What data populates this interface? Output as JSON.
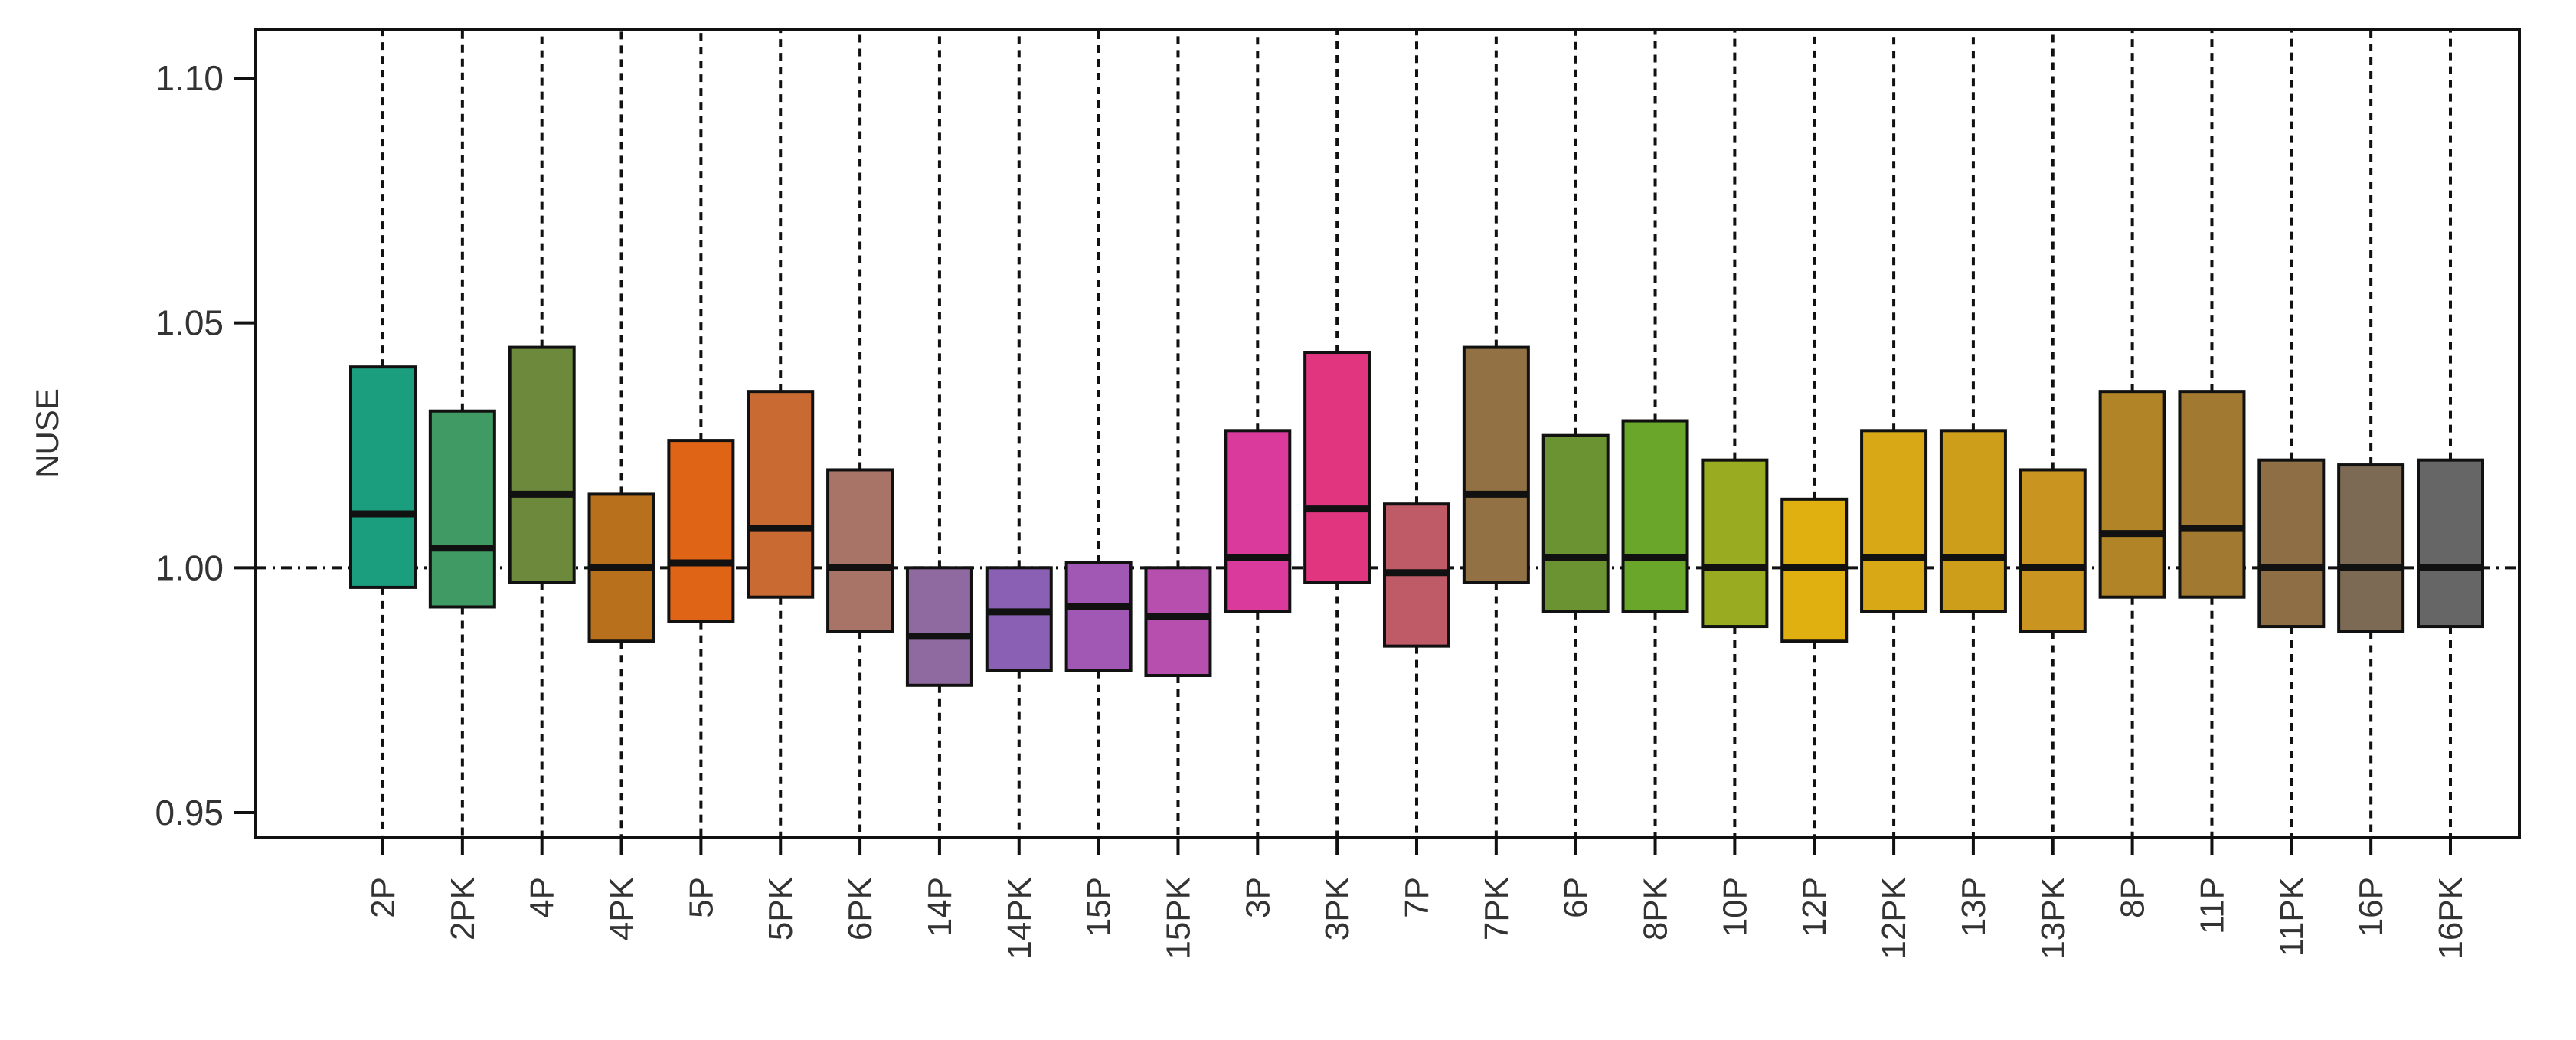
{
  "chart_data": {
    "type": "boxplot",
    "title": "",
    "xlabel": "",
    "ylabel": "NUSE",
    "ylim": [
      0.945,
      1.11
    ],
    "yticks": [
      0.95,
      1.0,
      1.05,
      1.1
    ],
    "ytick_labels": [
      "0.95",
      "1.00",
      "1.05",
      "1.10"
    ],
    "reference_line": 1.0,
    "grid": false,
    "categories": [
      "2P",
      "2PK",
      "4P",
      "4PK",
      "5P",
      "5PK",
      "6PK",
      "14P",
      "14PK",
      "15P",
      "15PK",
      "3P",
      "3PK",
      "7P",
      "7PK",
      "6P",
      "8PK",
      "10P",
      "12P",
      "12PK",
      "13P",
      "13PK",
      "8P",
      "11P",
      "11PK",
      "16P",
      "16PK"
    ],
    "boxes": [
      {
        "label": "2P",
        "q1": 0.996,
        "median": 1.011,
        "q3": 1.041,
        "color": "#1a9e7e"
      },
      {
        "label": "2PK",
        "q1": 0.992,
        "median": 1.004,
        "q3": 1.032,
        "color": "#3f9a64"
      },
      {
        "label": "4P",
        "q1": 0.997,
        "median": 1.015,
        "q3": 1.045,
        "color": "#6d8a3c"
      },
      {
        "label": "4PK",
        "q1": 0.985,
        "median": 1.0,
        "q3": 1.015,
        "color": "#b9701d"
      },
      {
        "label": "5P",
        "q1": 0.989,
        "median": 1.001,
        "q3": 1.026,
        "color": "#df6416"
      },
      {
        "label": "5PK",
        "q1": 0.994,
        "median": 1.008,
        "q3": 1.036,
        "color": "#c96a32"
      },
      {
        "label": "6PK",
        "q1": 0.987,
        "median": 1.0,
        "q3": 1.02,
        "color": "#a87468"
      },
      {
        "label": "14P",
        "q1": 0.976,
        "median": 0.986,
        "q3": 1.0,
        "color": "#8e6aa0"
      },
      {
        "label": "14PK",
        "q1": 0.979,
        "median": 0.991,
        "q3": 1.0,
        "color": "#8a60b4"
      },
      {
        "label": "15P",
        "q1": 0.979,
        "median": 0.992,
        "q3": 1.001,
        "color": "#a158b4"
      },
      {
        "label": "15PK",
        "q1": 0.978,
        "median": 0.99,
        "q3": 1.0,
        "color": "#b64fae"
      },
      {
        "label": "3P",
        "q1": 0.991,
        "median": 1.002,
        "q3": 1.028,
        "color": "#d93a9c"
      },
      {
        "label": "3PK",
        "q1": 0.997,
        "median": 1.012,
        "q3": 1.044,
        "color": "#e2357f"
      },
      {
        "label": "7P",
        "q1": 0.984,
        "median": 0.999,
        "q3": 1.013,
        "color": "#bf5a67"
      },
      {
        "label": "7PK",
        "q1": 0.997,
        "median": 1.015,
        "q3": 1.045,
        "color": "#927244"
      },
      {
        "label": "6P",
        "q1": 0.991,
        "median": 1.002,
        "q3": 1.027,
        "color": "#6c9332"
      },
      {
        "label": "8PK",
        "q1": 0.991,
        "median": 1.002,
        "q3": 1.03,
        "color": "#6aa62a"
      },
      {
        "label": "10P",
        "q1": 0.988,
        "median": 1.0,
        "q3": 1.022,
        "color": "#99ac21"
      },
      {
        "label": "12P",
        "q1": 0.985,
        "median": 1.0,
        "q3": 1.014,
        "color": "#e0af10"
      },
      {
        "label": "12PK",
        "q1": 0.991,
        "median": 1.002,
        "q3": 1.028,
        "color": "#d8a816"
      },
      {
        "label": "13P",
        "q1": 0.991,
        "median": 1.002,
        "q3": 1.028,
        "color": "#cd9e1a"
      },
      {
        "label": "13PK",
        "q1": 0.987,
        "median": 1.0,
        "q3": 1.02,
        "color": "#c99420"
      },
      {
        "label": "8P",
        "q1": 0.994,
        "median": 1.007,
        "q3": 1.036,
        "color": "#b18427"
      },
      {
        "label": "11P",
        "q1": 0.994,
        "median": 1.008,
        "q3": 1.036,
        "color": "#a27931"
      },
      {
        "label": "11PK",
        "q1": 0.988,
        "median": 1.0,
        "q3": 1.022,
        "color": "#8e6e44"
      },
      {
        "label": "16P",
        "q1": 0.987,
        "median": 1.0,
        "q3": 1.021,
        "color": "#7c6a55"
      },
      {
        "label": "16PK",
        "q1": 0.988,
        "median": 1.0,
        "q3": 1.022,
        "color": "#666666"
      }
    ]
  }
}
